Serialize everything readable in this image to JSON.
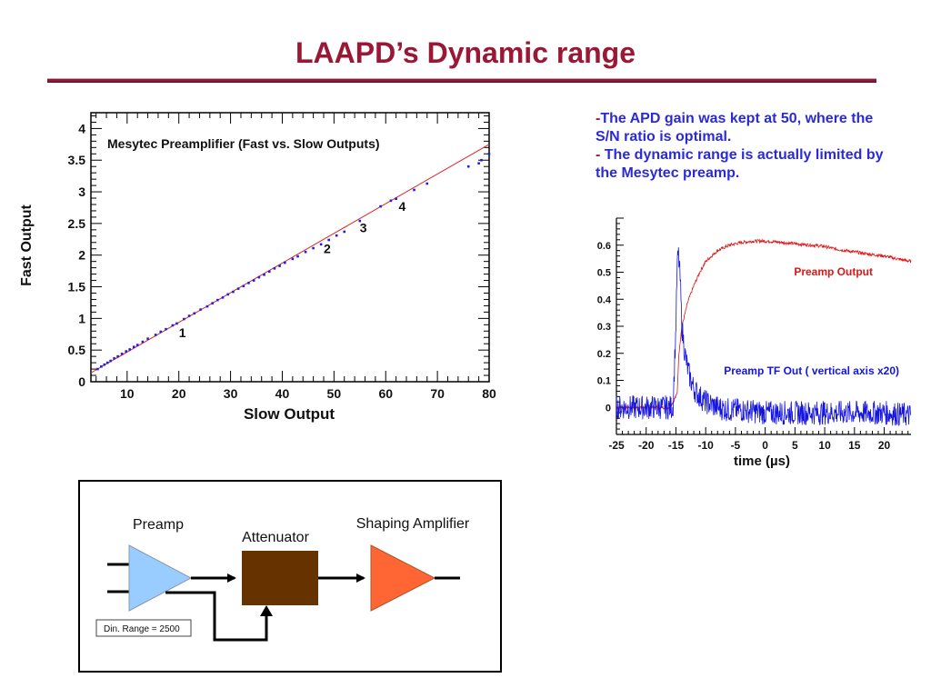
{
  "slide": {
    "title": "LAAPD’s Dynamic range",
    "bullets": [
      {
        "dash": "-",
        "text": "The APD gain was kept at 50, where the S/N ratio is optimal."
      },
      {
        "dash": "- ",
        "text": "The dynamic range is actually limited by the Mesytec preamp."
      }
    ]
  },
  "chart_data": [
    {
      "type": "scatter",
      "title": "Mesytec Preamplifier (Fast vs. Slow Outputs)",
      "xlabel": "Slow Output",
      "ylabel": "Fast Output",
      "xlim": [
        3,
        80
      ],
      "ylim": [
        0,
        4.25
      ],
      "xticks": [
        10,
        20,
        30,
        40,
        50,
        60,
        70,
        80
      ],
      "yticks": [
        0,
        0.5,
        1,
        1.5,
        2,
        2.5,
        3,
        3.5,
        4
      ],
      "grid": false,
      "series": [
        {
          "color": "#1f1fe0",
          "points": [
            [
              4.3,
              0.2
            ],
            [
              5.0,
              0.24
            ],
            [
              5.6,
              0.27
            ],
            [
              6.2,
              0.3
            ],
            [
              6.8,
              0.33
            ],
            [
              7.5,
              0.37
            ],
            [
              8.2,
              0.4
            ],
            [
              9.0,
              0.44
            ],
            [
              9.8,
              0.48
            ],
            [
              10.5,
              0.51
            ],
            [
              11.3,
              0.55
            ],
            [
              12.0,
              0.58
            ],
            [
              13.0,
              0.63
            ],
            [
              14.0,
              0.68
            ],
            [
              15.5,
              0.74
            ],
            [
              16.5,
              0.79
            ],
            [
              17.5,
              0.83
            ],
            [
              18.8,
              0.89
            ],
            [
              19.6,
              0.92
            ],
            [
              21.0,
              0.99
            ],
            [
              22.0,
              1.04
            ],
            [
              23.0,
              1.08
            ],
            [
              24.2,
              1.14
            ],
            [
              25.5,
              1.19
            ],
            [
              26.5,
              1.24
            ],
            [
              27.5,
              1.29
            ],
            [
              28.5,
              1.33
            ],
            [
              29.5,
              1.38
            ],
            [
              30.5,
              1.42
            ],
            [
              31.5,
              1.47
            ],
            [
              32.5,
              1.51
            ],
            [
              33.5,
              1.56
            ],
            [
              34.5,
              1.6
            ],
            [
              35.5,
              1.65
            ],
            [
              36.5,
              1.69
            ],
            [
              37.5,
              1.74
            ],
            [
              38.5,
              1.79
            ],
            [
              39.5,
              1.83
            ],
            [
              40.5,
              1.88
            ],
            [
              42.0,
              1.94
            ],
            [
              43.0,
              1.98
            ],
            [
              44.5,
              2.05
            ],
            [
              46.0,
              2.11
            ],
            [
              47.5,
              2.17
            ],
            [
              49.0,
              2.24
            ],
            [
              50.5,
              2.31
            ],
            [
              52.0,
              2.37
            ],
            [
              55.0,
              2.54
            ],
            [
              59.0,
              2.77
            ],
            [
              61.0,
              2.86
            ],
            [
              62.0,
              2.89
            ],
            [
              65.5,
              3.03
            ],
            [
              68.0,
              3.13
            ],
            [
              76.0,
              3.4
            ],
            [
              78.0,
              3.45
            ],
            [
              78.5,
              3.5
            ],
            [
              80.0,
              3.6
            ]
          ]
        },
        {
          "type": "line",
          "color": "#e02020",
          "x": [
            3,
            80
          ],
          "y": [
            0.14,
            3.75
          ]
        }
      ],
      "annotations": [
        {
          "text": "1",
          "x": 20,
          "y": 0.7
        },
        {
          "text": "2",
          "x": 48,
          "y": 2.03
        },
        {
          "text": "3",
          "x": 55,
          "y": 2.36
        },
        {
          "text": "4",
          "x": 62.5,
          "y": 2.7
        }
      ]
    },
    {
      "type": "line",
      "xlabel": "time (µs)",
      "ylabel": "",
      "xlim": [
        -25,
        24.5
      ],
      "ylim": [
        -0.1,
        0.7
      ],
      "xticks": [
        -25,
        -20,
        -15,
        -10,
        -5,
        0,
        5,
        10,
        15,
        20
      ],
      "yticks": [
        0,
        0.1,
        0.2,
        0.3,
        0.4,
        0.5,
        0.6
      ],
      "grid": false,
      "series": [
        {
          "name": "Preamp Output",
          "color": "#e01515",
          "x": [
            -25,
            -16,
            -14.8,
            -14.5,
            -14,
            -13,
            -12,
            -11,
            -10,
            -8,
            -6,
            -4,
            -2,
            0,
            2,
            5,
            8,
            10,
            12,
            15,
            18,
            20,
            22,
            24.5
          ],
          "y": [
            0.0,
            0.0,
            0.05,
            0.2,
            0.3,
            0.39,
            0.45,
            0.5,
            0.54,
            0.58,
            0.6,
            0.61,
            0.615,
            0.615,
            0.612,
            0.605,
            0.6,
            0.595,
            0.585,
            0.575,
            0.565,
            0.56,
            0.55,
            0.54
          ]
        },
        {
          "name": "Preamp TF Out ( vertical axis x20)",
          "color": "#1414e0",
          "x": [
            -25,
            -15.5,
            -15,
            -14.8,
            -14.6,
            -14.3,
            -14,
            -13.5,
            -13,
            -12.5,
            -12,
            -11,
            -10,
            -9,
            -8,
            -6,
            -4,
            0,
            5,
            10,
            15,
            20,
            24.5
          ],
          "y": [
            0.0,
            0.0,
            0.3,
            0.52,
            0.57,
            0.48,
            0.3,
            0.2,
            0.14,
            0.1,
            0.07,
            0.04,
            0.02,
            0.01,
            0.0,
            -0.01,
            -0.01,
            -0.02,
            -0.02,
            -0.02,
            -0.02,
            -0.02,
            -0.03
          ]
        }
      ]
    }
  ],
  "diagram": {
    "preamp_label": "Preamp",
    "attenuator_label": "Attenuator",
    "shaping_label": "Shaping Amplifier",
    "range_box": "Din. Range = 2500",
    "colors": {
      "preamp": "#99ccff",
      "attenuator": "#663300",
      "shaping": "#ff6633"
    }
  }
}
